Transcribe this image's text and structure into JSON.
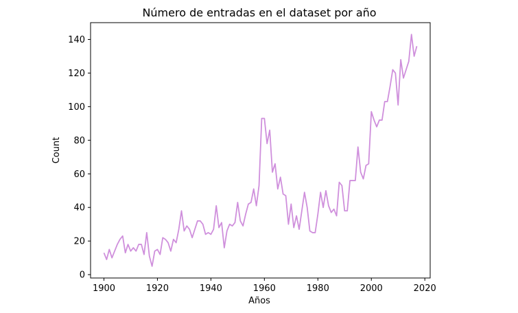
{
  "chart_data": {
    "type": "line",
    "title": "Número de entradas en el dataset por año",
    "xlabel": "Años",
    "ylabel": "Count",
    "xlim": [
      1895,
      2022
    ],
    "ylim": [
      -2,
      150
    ],
    "xticks": [
      1900,
      1920,
      1940,
      1960,
      1980,
      2000,
      2020
    ],
    "yticks": [
      0,
      20,
      40,
      60,
      80,
      100,
      120,
      140
    ],
    "grid": false,
    "line_color": "#cf8fdc",
    "series": [
      {
        "x": [
          1900,
          1901,
          1902,
          1903,
          1904,
          1905,
          1906,
          1907,
          1908,
          1909,
          1910,
          1911,
          1912,
          1913,
          1914,
          1915,
          1916,
          1917,
          1918,
          1919,
          1920,
          1921,
          1922,
          1923,
          1924,
          1925,
          1926,
          1927,
          1928,
          1929,
          1930,
          1931,
          1932,
          1933,
          1934,
          1935,
          1936,
          1937,
          1938,
          1939,
          1940,
          1941,
          1942,
          1943,
          1944,
          1945,
          1946,
          1947,
          1948,
          1949,
          1950,
          1951,
          1952,
          1953,
          1954,
          1955,
          1956,
          1957,
          1958,
          1959,
          1960,
          1961,
          1962,
          1963,
          1964,
          1965,
          1966,
          1967,
          1968,
          1969,
          1970,
          1971,
          1972,
          1973,
          1974,
          1975,
          1976,
          1977,
          1978,
          1979,
          1980,
          1981,
          1982,
          1983,
          1984,
          1985,
          1986,
          1987,
          1988,
          1989,
          1990,
          1991,
          1992,
          1993,
          1994,
          1995,
          1996,
          1997,
          1998,
          1999,
          2000,
          2001,
          2002,
          2003,
          2004,
          2005,
          2006,
          2007,
          2008,
          2009,
          2010,
          2011,
          2012,
          2013,
          2014,
          2015,
          2016,
          2017
        ],
        "y": [
          13,
          9,
          15,
          10,
          14,
          18,
          21,
          23,
          13,
          18,
          14,
          16,
          14,
          18,
          18,
          12,
          25,
          11,
          5,
          14,
          15,
          12,
          22,
          21,
          19,
          14,
          21,
          19,
          27,
          38,
          26,
          29,
          27,
          22,
          27,
          32,
          32,
          30,
          24,
          25,
          24,
          27,
          41,
          28,
          31,
          16,
          26,
          30,
          29,
          31,
          43,
          32,
          29,
          36,
          42,
          43,
          51,
          41,
          53,
          93,
          93,
          78,
          86,
          61,
          66,
          51,
          58,
          48,
          47,
          30,
          42,
          28,
          35,
          27,
          38,
          49,
          40,
          26,
          25,
          25,
          36,
          49,
          40,
          50,
          41,
          37,
          39,
          35,
          55,
          53,
          38,
          38,
          56,
          56,
          56,
          76,
          61,
          57,
          65,
          66,
          97,
          92,
          88,
          92,
          92,
          103,
          103,
          112,
          122,
          120,
          101,
          128,
          117,
          122,
          127,
          143,
          130,
          136
        ]
      }
    ]
  }
}
